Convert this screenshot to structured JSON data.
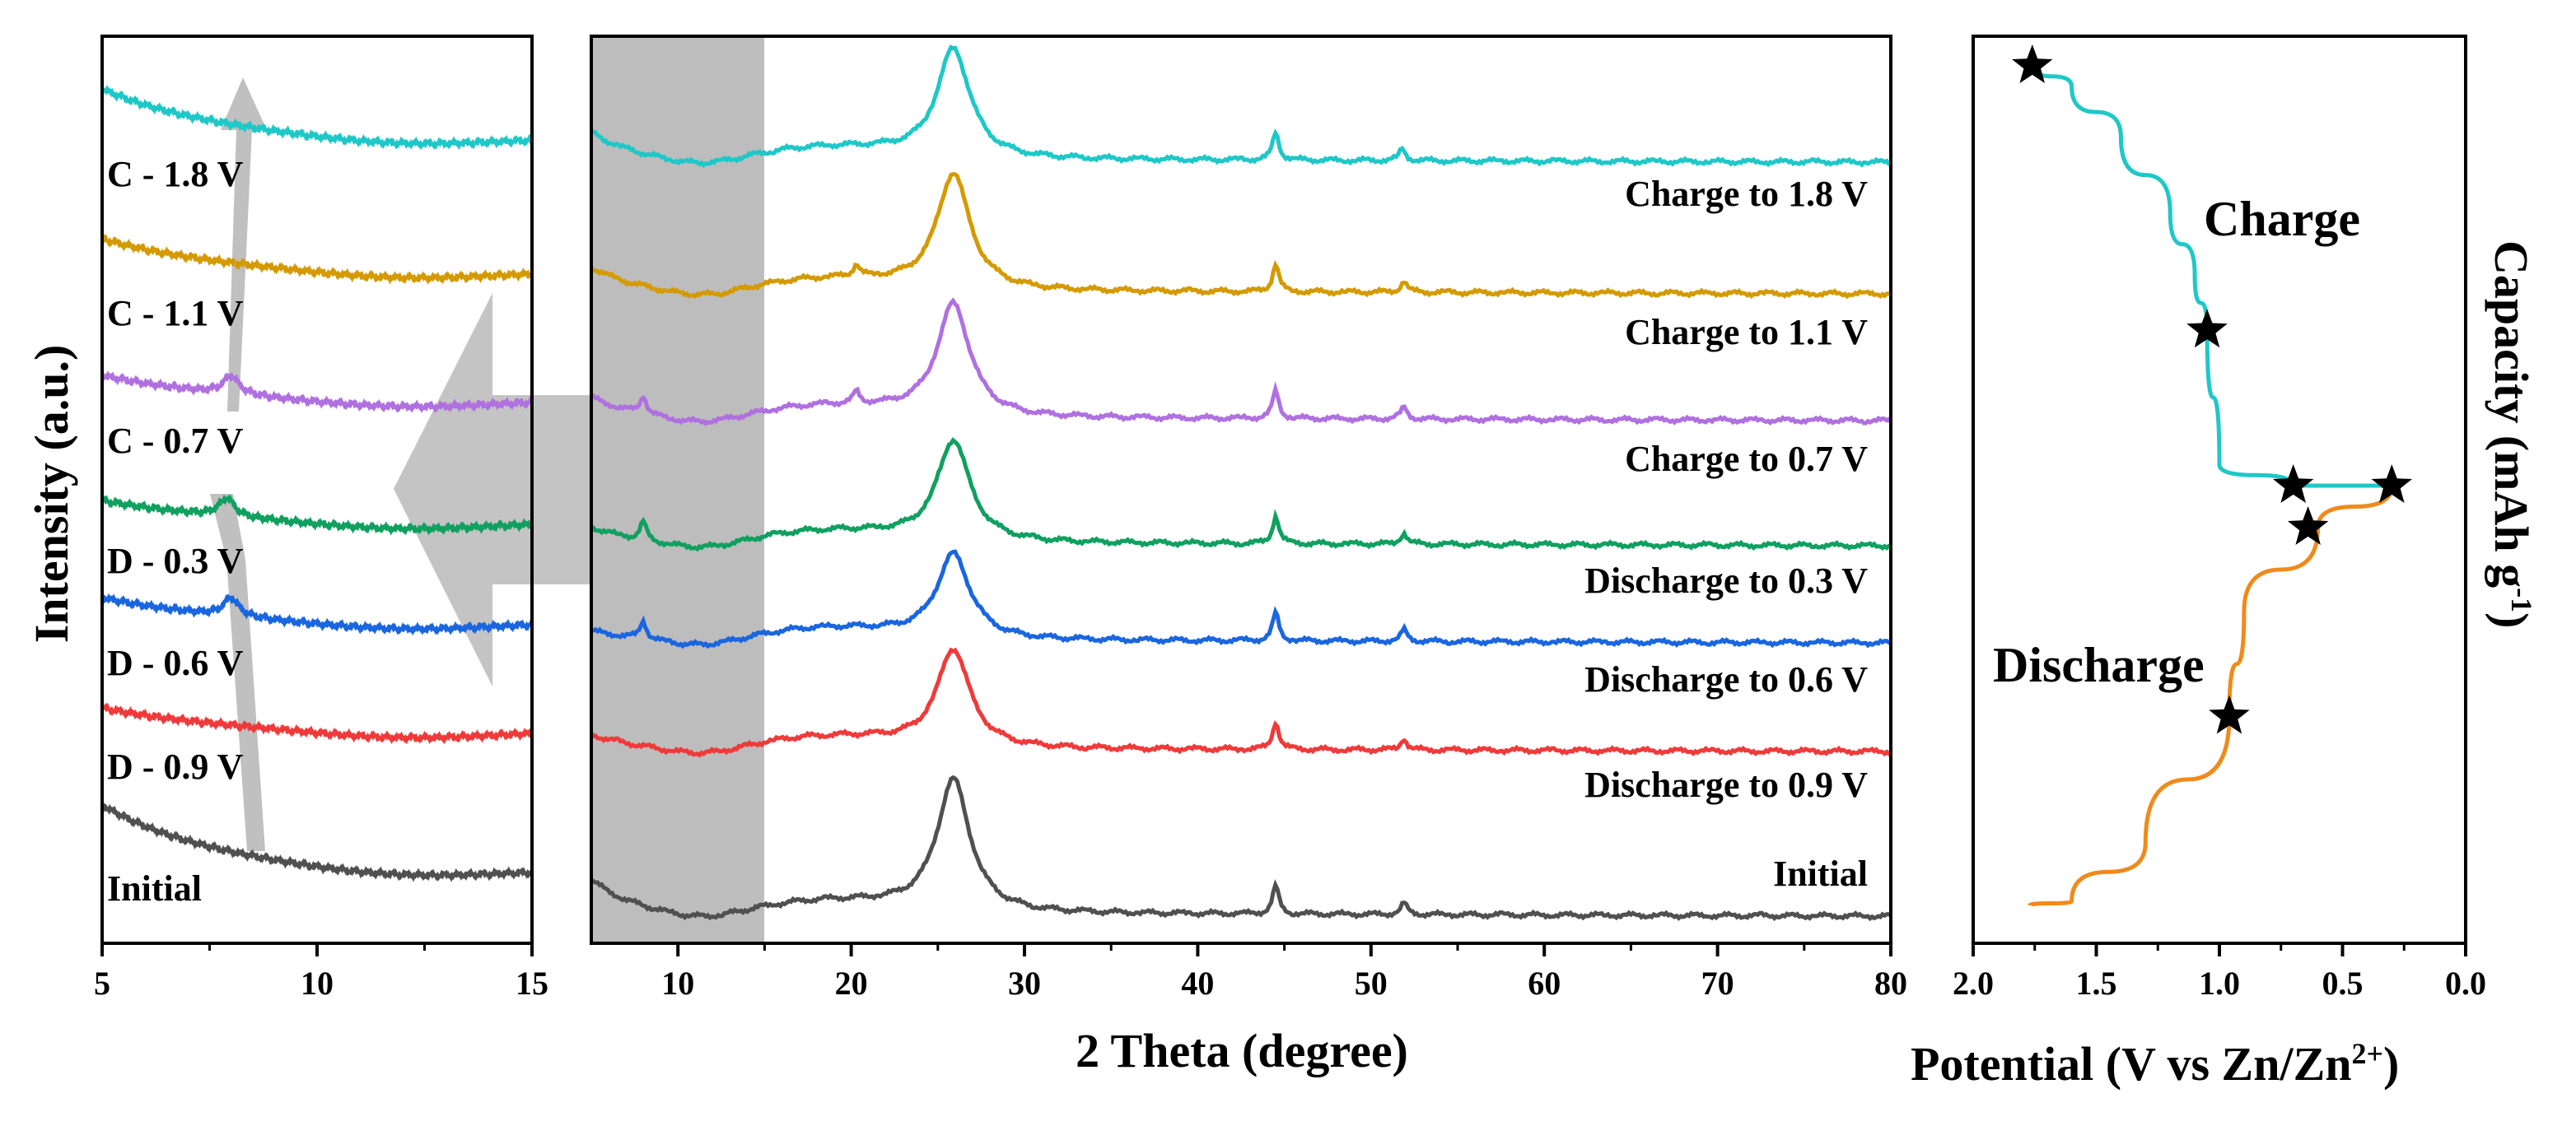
{
  "panels": {
    "left": {
      "xlim": [
        5,
        15
      ],
      "xticks": [
        "5",
        "10",
        "15"
      ]
    },
    "middle": {
      "xlim": [
        5,
        80
      ],
      "xticks": [
        "10",
        "20",
        "30",
        "40",
        "50",
        "60",
        "70",
        "80"
      ],
      "shaded_region": [
        5,
        15
      ]
    },
    "right": {
      "xlim": [
        2.0,
        0.0
      ],
      "xticks": [
        "2.0",
        "1.5",
        "1.0",
        "0.5",
        "0.0"
      ]
    }
  },
  "labels": {
    "y_title": "Intensity (a.u.)",
    "x_title_middle": "2 Theta (degree)",
    "x_title_right_pre": "Potential (V vs Zn/Zn",
    "x_title_right_sup": "2+",
    "x_title_right_post": ")",
    "right_y_title_pre": "Capacity (mAh g",
    "right_y_title_sup": "-1",
    "right_y_title_post": ")",
    "charge": "Charge",
    "discharge": "Discharge"
  },
  "chart_data": [
    {
      "type": "line",
      "panel": "left",
      "x_range": [
        5,
        15
      ],
      "series": [
        {
          "name": "C - 1.8 V",
          "color": "#1ec8c8",
          "peaks": []
        },
        {
          "name": "C - 1.1 V",
          "color": "#d49a00",
          "peaks": []
        },
        {
          "name": "C - 0.7 V",
          "color": "#b070e0",
          "peaks": [
            8.0
          ]
        },
        {
          "name": "D - 0.3 V",
          "color": "#10a060",
          "peaks": [
            7.9
          ]
        },
        {
          "name": "D - 0.6 V",
          "color": "#1a66e0",
          "peaks": [
            8.0
          ]
        },
        {
          "name": "D - 0.9 V",
          "color": "#f03a3a",
          "peaks": []
        },
        {
          "name": "Initial",
          "color": "#505050",
          "peaks": []
        }
      ]
    },
    {
      "type": "line",
      "panel": "middle",
      "x_range": [
        5,
        80
      ],
      "xlabel": "2 Theta (degree)",
      "series": [
        {
          "name": "Charge to 1.8 V",
          "color": "#1ec8c8",
          "peaks": [
            25.9,
            44.5,
            51.8
          ]
        },
        {
          "name": "Charge to 1.1 V",
          "color": "#d49a00",
          "peaks": [
            20.3,
            25.9,
            44.5,
            51.9
          ]
        },
        {
          "name": "Charge to 0.7 V",
          "color": "#b070e0",
          "peaks": [
            8.0,
            20.3,
            25.9,
            44.5,
            51.9
          ]
        },
        {
          "name": "Discharge to 0.3 V",
          "color": "#10a060",
          "peaks": [
            8.0,
            25.9,
            44.5,
            51.9
          ]
        },
        {
          "name": "Discharge to 0.6 V",
          "color": "#1a66e0",
          "peaks": [
            8.0,
            25.9,
            44.5,
            51.9
          ]
        },
        {
          "name": "Discharge to 0.9 V",
          "color": "#f03a3a",
          "peaks": [
            25.9,
            44.5,
            51.9
          ]
        },
        {
          "name": "Initial",
          "color": "#505050",
          "peaks": [
            25.9,
            44.5,
            51.9
          ]
        }
      ]
    },
    {
      "type": "line",
      "panel": "right",
      "xlabel": "Potential (V vs Zn/Zn2+)",
      "ylabel": "Capacity (mAh g-1)",
      "xlim": [
        2.0,
        0.0
      ],
      "series": [
        {
          "name": "Charge",
          "color": "#1ec8c8",
          "x": [
            1.76,
            1.6,
            1.4,
            1.2,
            1.1,
            1.05,
            1.0,
            0.7,
            0.3
          ],
          "y": [
            1.0,
            0.95,
            0.83,
            0.65,
            0.5,
            0.37,
            0.05,
            0.0,
            0.0
          ]
        },
        {
          "name": "Discharge",
          "color": "#f08a1a",
          "x": [
            0.3,
            0.6,
            0.9,
            0.96,
            1.3,
            1.6,
            1.77
          ],
          "y": [
            0.0,
            -0.1,
            -0.3,
            -0.55,
            -0.85,
            -0.99,
            -1.0
          ]
        }
      ],
      "markers": [
        {
          "x": 1.76,
          "y": 1.0
        },
        {
          "x": 1.05,
          "y": 0.37
        },
        {
          "x": 0.7,
          "y": 0.0
        },
        {
          "x": 0.3,
          "y": 0.0
        },
        {
          "x": 0.64,
          "y": -0.1
        },
        {
          "x": 0.96,
          "y": -0.55
        }
      ]
    }
  ]
}
